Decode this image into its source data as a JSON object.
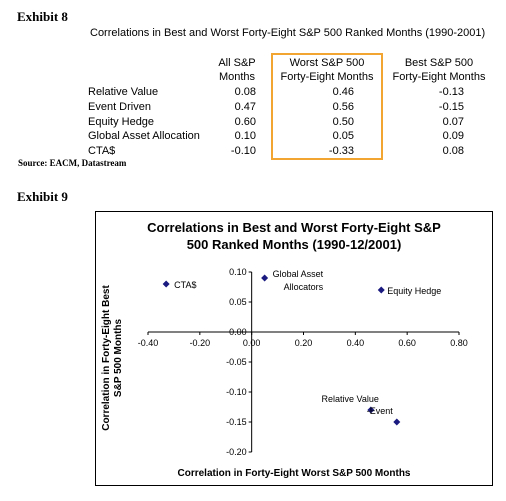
{
  "exhibit8": {
    "title": "Exhibit 8",
    "table_title": "Correlations in Best and Worst Forty-Eight S&P 500 Ranked Months (1990-2001)",
    "headers": [
      {
        "line1": "All S&P",
        "line2": "Months"
      },
      {
        "line1": "Worst S&P 500",
        "line2": "Forty-Eight Months"
      },
      {
        "line1": "Best S&P 500",
        "line2": "Forty-Eight Months"
      }
    ],
    "rows": [
      {
        "label": "Relative Value",
        "all": "0.08",
        "worst": "0.46",
        "best": "-0.13"
      },
      {
        "label": "Event Driven",
        "all": "0.47",
        "worst": "0.56",
        "best": "-0.15"
      },
      {
        "label": "Equity Hedge",
        "all": "0.60",
        "worst": "0.50",
        "best": "0.07"
      },
      {
        "label": "Global Asset Allocation",
        "all": "0.10",
        "worst": "0.05",
        "best": "0.09"
      },
      {
        "label": "CTA$",
        "all": "-0.10",
        "worst": "-0.33",
        "best": "0.08"
      }
    ],
    "source": "Source: EACM, Datastream",
    "highlight_color": "#f2a531"
  },
  "exhibit9": {
    "title": "Exhibit 9"
  },
  "chart_data": {
    "type": "scatter",
    "title_line1": "Correlations in Best and Worst Forty-Eight S&P",
    "title_line2": "500 Ranked Months (1990-12/2001)",
    "xlabel": "Correlation in Forty-Eight Worst S&P 500 Months",
    "ylabel_line1": "Correlation in Forty-Eight Best",
    "ylabel_line2": "S&P 500 Months",
    "xlim": [
      -0.4,
      0.8
    ],
    "ylim": [
      -0.2,
      0.1
    ],
    "x_ticks": [
      "-0.40",
      "-0.20",
      "0.00",
      "0.20",
      "0.40",
      "0.60",
      "0.80"
    ],
    "y_ticks": [
      "0.10",
      "0.05",
      "0.00",
      "-0.05",
      "-0.10",
      "-0.15",
      "-0.20"
    ],
    "marker_color": "#1a1a80",
    "points": [
      {
        "x": -0.33,
        "y": 0.08,
        "label": "CTA$"
      },
      {
        "x": 0.05,
        "y": 0.09,
        "label": "Global Asset Allocators"
      },
      {
        "x": 0.5,
        "y": 0.07,
        "label": "Equity Hedge"
      },
      {
        "x": 0.46,
        "y": -0.13,
        "label": "Relative Value"
      },
      {
        "x": 0.56,
        "y": -0.15,
        "label": "Event"
      }
    ],
    "grid": false
  }
}
